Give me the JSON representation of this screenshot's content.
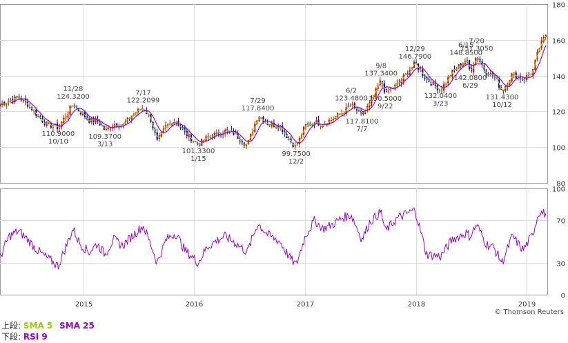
{
  "chart_data": [
    {
      "type": "candlestick",
      "panel": "upper",
      "xlim": [
        "2014-04-01",
        "2019-03-10"
      ],
      "ylim": [
        80,
        180
      ],
      "yticks": [
        80,
        100,
        120,
        140,
        160,
        180
      ],
      "grid": true,
      "x_tick_labels": [
        {
          "date": "2015-01-01",
          "label": "2015"
        },
        {
          "date": "2016-01-01",
          "label": "2016"
        },
        {
          "date": "2017-01-01",
          "label": "2017"
        },
        {
          "date": "2018-01-01",
          "label": "2018"
        },
        {
          "date": "2019-01-01",
          "label": "2019"
        }
      ],
      "price_path": [
        [
          "2014-04-01",
          124
        ],
        [
          "2014-05-01",
          126
        ],
        [
          "2014-06-01",
          128
        ],
        [
          "2014-07-01",
          124
        ],
        [
          "2014-08-01",
          118
        ],
        [
          "2014-09-01",
          113
        ],
        [
          "2014-10-10",
          110.9
        ],
        [
          "2014-11-28",
          124.32
        ],
        [
          "2014-12-20",
          120
        ],
        [
          "2015-01-20",
          115
        ],
        [
          "2015-02-15",
          115
        ],
        [
          "2015-03-13",
          109.37
        ],
        [
          "2015-04-10",
          113
        ],
        [
          "2015-05-10",
          112
        ],
        [
          "2015-06-10",
          118
        ],
        [
          "2015-07-17",
          122.2099
        ],
        [
          "2015-08-10",
          116
        ],
        [
          "2015-09-01",
          103
        ],
        [
          "2015-10-01",
          112
        ],
        [
          "2015-11-01",
          115
        ],
        [
          "2015-12-01",
          108
        ],
        [
          "2016-01-15",
          101.33
        ],
        [
          "2016-02-10",
          105
        ],
        [
          "2016-03-10",
          107
        ],
        [
          "2016-04-10",
          109
        ],
        [
          "2016-05-10",
          108
        ],
        [
          "2016-06-24",
          101
        ],
        [
          "2016-07-29",
          117.84
        ],
        [
          "2016-09-01",
          113
        ],
        [
          "2016-10-10",
          112
        ],
        [
          "2016-11-10",
          104
        ],
        [
          "2016-12-02",
          99.75
        ],
        [
          "2017-01-01",
          112
        ],
        [
          "2017-02-01",
          114
        ],
        [
          "2017-03-01",
          113
        ],
        [
          "2017-04-01",
          116
        ],
        [
          "2017-05-01",
          119
        ],
        [
          "2017-06-02",
          123.48
        ],
        [
          "2017-07-07",
          117.81
        ],
        [
          "2017-08-01",
          124
        ],
        [
          "2017-09-08",
          137.34
        ],
        [
          "2017-09-22",
          130.5
        ],
        [
          "2017-11-01",
          135
        ],
        [
          "2017-12-29",
          146.79
        ],
        [
          "2018-02-05",
          138
        ],
        [
          "2018-03-23",
          132.04
        ],
        [
          "2018-05-01",
          142
        ],
        [
          "2018-06-15",
          148.85
        ],
        [
          "2018-06-29",
          142.08
        ],
        [
          "2018-07-20",
          151.305
        ],
        [
          "2018-08-20",
          142
        ],
        [
          "2018-09-15",
          140
        ],
        [
          "2018-10-12",
          131.43
        ],
        [
          "2018-11-15",
          141
        ],
        [
          "2018-12-20",
          138
        ],
        [
          "2019-01-20",
          142
        ],
        [
          "2019-02-10",
          155
        ],
        [
          "2019-03-05",
          163
        ]
      ],
      "series": [
        {
          "name": "SMA 5",
          "color": "#99cc00"
        },
        {
          "name": "SMA 25",
          "color": "#9900cc"
        }
      ],
      "annotations": [
        {
          "date": "2014-11-28",
          "value": 124.32,
          "date_label": "11/28",
          "value_label": "124.3200",
          "pos": "above"
        },
        {
          "date": "2014-10-10",
          "value": 110.9,
          "date_label": "10/10",
          "value_label": "110.9000",
          "pos": "below"
        },
        {
          "date": "2015-03-13",
          "value": 109.37,
          "date_label": "3/13",
          "value_label": "109.3700",
          "pos": "below"
        },
        {
          "date": "2015-07-17",
          "value": 122.2099,
          "date_label": "7/17",
          "value_label": "122.2099",
          "pos": "above"
        },
        {
          "date": "2016-01-15",
          "value": 101.33,
          "date_label": "1/15",
          "value_label": "101.3300",
          "pos": "below"
        },
        {
          "date": "2016-07-29",
          "value": 117.84,
          "date_label": "7/29",
          "value_label": "117.8400",
          "pos": "above"
        },
        {
          "date": "2016-12-02",
          "value": 99.75,
          "date_label": "12/2",
          "value_label": "99.7500",
          "pos": "below"
        },
        {
          "date": "2017-06-02",
          "value": 123.48,
          "date_label": "6/2",
          "value_label": "123.4800",
          "pos": "above"
        },
        {
          "date": "2017-07-07",
          "value": 117.81,
          "date_label": "7/7",
          "value_label": "117.8100",
          "pos": "below"
        },
        {
          "date": "2017-09-08",
          "value": 137.34,
          "date_label": "9/8",
          "value_label": "137.3400",
          "pos": "above"
        },
        {
          "date": "2017-09-22",
          "value": 130.5,
          "date_label": "9/22",
          "value_label": "130.5000",
          "pos": "below"
        },
        {
          "date": "2017-12-29",
          "value": 146.79,
          "date_label": "12/29",
          "value_label": "146.7900",
          "pos": "above"
        },
        {
          "date": "2018-03-23",
          "value": 132.04,
          "date_label": "3/23",
          "value_label": "132.0400",
          "pos": "below"
        },
        {
          "date": "2018-06-15",
          "value": 148.85,
          "date_label": "6/15",
          "value_label": "148.8500",
          "pos": "above"
        },
        {
          "date": "2018-06-29",
          "value": 142.08,
          "date_label": "6/29",
          "value_label": "142.0800",
          "pos": "below"
        },
        {
          "date": "2018-07-20",
          "value": 151.305,
          "date_label": "7/20",
          "value_label": "151.3050",
          "pos": "above"
        },
        {
          "date": "2018-10-12",
          "value": 131.43,
          "date_label": "10/12",
          "value_label": "131.4300",
          "pos": "below"
        }
      ]
    },
    {
      "type": "line",
      "panel": "lower",
      "ylim": [
        0,
        100
      ],
      "yticks": [
        0,
        30,
        70,
        100
      ],
      "grid": true,
      "series": [
        {
          "name": "RSI 9",
          "color": "#9900cc",
          "points": [
            [
              "2014-04-01",
              35
            ],
            [
              "2014-05-01",
              55
            ],
            [
              "2014-06-01",
              60
            ],
            [
              "2014-07-01",
              52
            ],
            [
              "2014-08-01",
              42
            ],
            [
              "2014-09-01",
              35
            ],
            [
              "2014-10-10",
              27
            ],
            [
              "2014-11-28",
              62
            ],
            [
              "2014-12-20",
              48
            ],
            [
              "2015-01-20",
              40
            ],
            [
              "2015-02-15",
              48
            ],
            [
              "2015-03-13",
              38
            ],
            [
              "2015-04-10",
              52
            ],
            [
              "2015-05-10",
              46
            ],
            [
              "2015-06-10",
              55
            ],
            [
              "2015-07-17",
              65
            ],
            [
              "2015-08-10",
              48
            ],
            [
              "2015-09-01",
              30
            ],
            [
              "2015-10-01",
              52
            ],
            [
              "2015-11-01",
              58
            ],
            [
              "2015-12-01",
              42
            ],
            [
              "2016-01-15",
              30
            ],
            [
              "2016-02-10",
              44
            ],
            [
              "2016-03-10",
              50
            ],
            [
              "2016-04-10",
              55
            ],
            [
              "2016-05-10",
              50
            ],
            [
              "2016-06-24",
              40
            ],
            [
              "2016-07-29",
              67
            ],
            [
              "2016-09-01",
              56
            ],
            [
              "2016-10-10",
              50
            ],
            [
              "2016-11-10",
              35
            ],
            [
              "2016-12-02",
              28
            ],
            [
              "2017-01-01",
              55
            ],
            [
              "2017-02-01",
              70
            ],
            [
              "2017-03-01",
              62
            ],
            [
              "2017-04-01",
              66
            ],
            [
              "2017-05-01",
              72
            ],
            [
              "2017-06-02",
              75
            ],
            [
              "2017-07-07",
              52
            ],
            [
              "2017-08-01",
              68
            ],
            [
              "2017-09-08",
              78
            ],
            [
              "2017-09-22",
              60
            ],
            [
              "2017-11-01",
              72
            ],
            [
              "2017-12-29",
              80
            ],
            [
              "2018-02-05",
              38
            ],
            [
              "2018-03-23",
              36
            ],
            [
              "2018-05-01",
              52
            ],
            [
              "2018-06-15",
              58
            ],
            [
              "2018-06-29",
              55
            ],
            [
              "2018-07-20",
              66
            ],
            [
              "2018-08-20",
              48
            ],
            [
              "2018-09-15",
              44
            ],
            [
              "2018-10-12",
              30
            ],
            [
              "2018-11-15",
              55
            ],
            [
              "2018-12-20",
              42
            ],
            [
              "2019-01-20",
              56
            ],
            [
              "2019-02-10",
              78
            ],
            [
              "2019-03-05",
              76
            ]
          ]
        }
      ]
    }
  ],
  "legend": {
    "upper_label": "上段:",
    "lower_label": "下段:",
    "sma5": "SMA 5",
    "sma25": "SMA 25",
    "rsi": "RSI 9"
  },
  "credit": "© Thomson Reuters"
}
